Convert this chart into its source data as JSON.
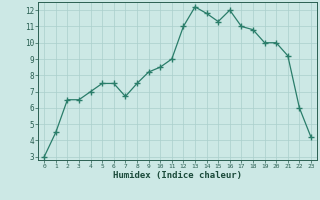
{
  "x": [
    0,
    1,
    2,
    3,
    4,
    5,
    6,
    7,
    8,
    9,
    10,
    11,
    12,
    13,
    14,
    15,
    16,
    17,
    18,
    19,
    20,
    21,
    22,
    23
  ],
  "y": [
    3.0,
    4.5,
    6.5,
    6.5,
    7.0,
    7.5,
    7.5,
    6.7,
    7.5,
    8.2,
    8.5,
    9.0,
    11.0,
    12.2,
    11.8,
    11.3,
    12.0,
    11.0,
    10.8,
    10.0,
    10.0,
    9.2,
    6.0,
    4.2
  ],
  "xlabel": "Humidex (Indice chaleur)",
  "ylim_min": 2.8,
  "ylim_max": 12.5,
  "xlim_min": -0.5,
  "xlim_max": 23.5,
  "yticks": [
    3,
    4,
    5,
    6,
    7,
    8,
    9,
    10,
    11,
    12
  ],
  "xtick_labels": [
    "0",
    "1",
    "2",
    "3",
    "4",
    "5",
    "6",
    "7",
    "8",
    "9",
    "10",
    "11",
    "12",
    "13",
    "14",
    "15",
    "16",
    "17",
    "18",
    "19",
    "20",
    "21",
    "22",
    "23"
  ],
  "line_color": "#2a7d6a",
  "bg_color": "#cce8e5",
  "grid_color": "#aacfcc",
  "tick_label_color": "#2a5f52",
  "xlabel_color": "#1a4a3a",
  "spine_color": "#2a5f52"
}
